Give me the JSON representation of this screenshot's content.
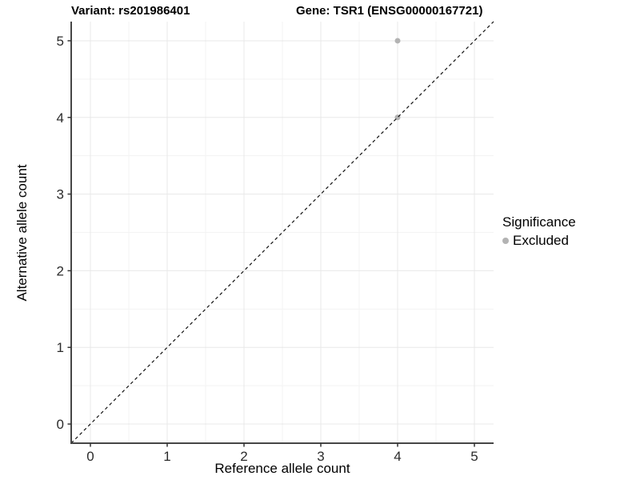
{
  "titles": {
    "variant": "Variant: rs201986401",
    "gene": "Gene: TSR1 (ENSG00000167721)"
  },
  "legend": {
    "title": "Significance",
    "items": [
      {
        "label": "Excluded",
        "color": "#b3b3b3"
      }
    ]
  },
  "appearance": {
    "background": "#ffffff",
    "axis_line_color": "#464646",
    "tick_mark_color": "#333333",
    "tick_label_color": "#2b2b2b",
    "grid_major_color": "#e8e8e8",
    "grid_minor_color": "#f3f3f3",
    "reference_line_color": "#111111",
    "point_color": "#b3b3b3"
  },
  "chart_data": {
    "type": "scatter",
    "title_left": "Variant: rs201986401",
    "title_right": "Gene: TSR1 (ENSG00000167721)",
    "xlabel": "Reference allele count",
    "ylabel": "Alternative allele count",
    "xlim": [
      -0.25,
      5.25
    ],
    "ylim": [
      -0.25,
      5.25
    ],
    "xticks": [
      0,
      1,
      2,
      3,
      4,
      5
    ],
    "yticks": [
      0,
      1,
      2,
      3,
      4,
      5
    ],
    "grid": "major+minor",
    "legend_position": "right",
    "series": [
      {
        "name": "Excluded",
        "color": "#b3b3b3",
        "points": [
          [
            4,
            4
          ],
          [
            4,
            5
          ]
        ]
      }
    ],
    "reference_line": {
      "type": "identity y=x",
      "style": "dashed",
      "color": "#111111"
    }
  }
}
